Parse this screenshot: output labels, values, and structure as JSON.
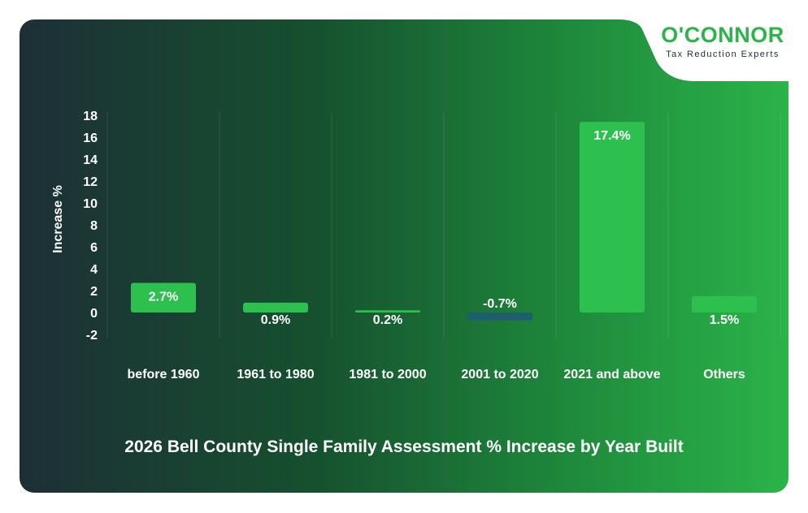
{
  "brand": {
    "name": "O'CONNOR",
    "tagline": "Tax Reduction Experts"
  },
  "colors": {
    "positive_bar": "#2ec04f",
    "negative_bar": "#1f5e6e",
    "text": "#ffffff",
    "brand_green": "#2bb44a"
  },
  "chart_data": {
    "type": "bar",
    "title": "2026 Bell County Single Family Assessment % Increase by Year Built",
    "xlabel": "",
    "ylabel": "Increase %",
    "categories": [
      "before 1960",
      "1961 to 1980",
      "1981 to 2000",
      "2001 to 2020",
      "2021 and above",
      "Others"
    ],
    "values": [
      2.7,
      0.9,
      0.2,
      -0.7,
      17.4,
      1.5
    ],
    "data_labels": [
      "2.7%",
      "0.9%",
      "0.2%",
      "-0.7%",
      "17.4%",
      "1.5%"
    ],
    "ylim": [
      -2,
      18
    ],
    "yticks": [
      -2,
      0,
      2,
      4,
      6,
      8,
      10,
      12,
      14,
      16,
      18
    ],
    "grid": "vertical"
  }
}
